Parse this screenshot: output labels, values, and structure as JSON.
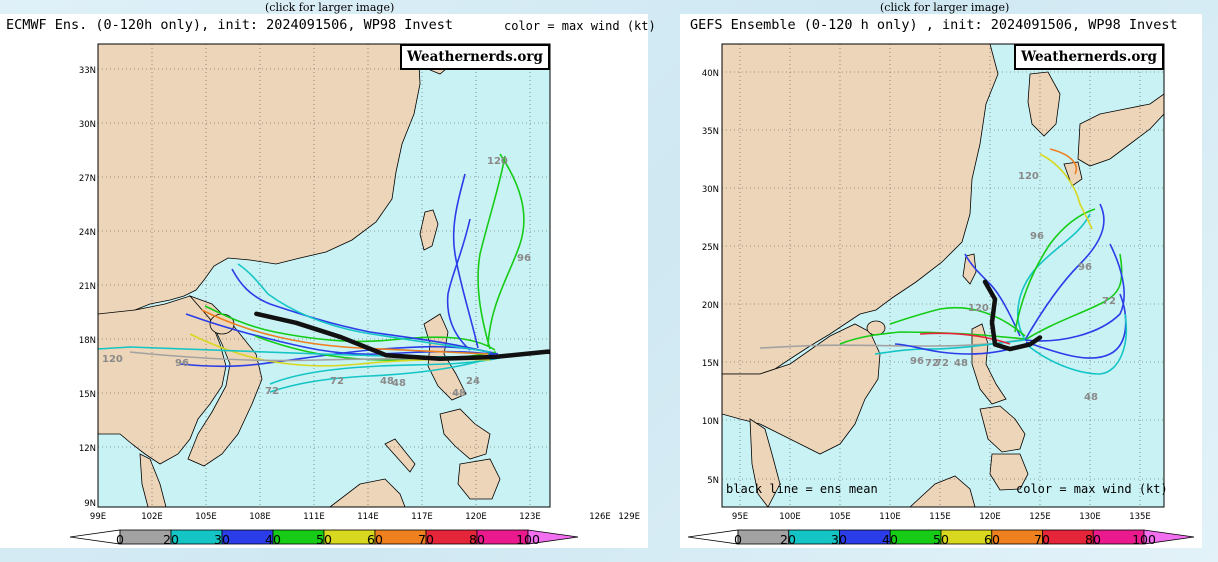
{
  "caption": "(click for larger image)",
  "brand": "Weathernerds.org",
  "colors": {
    "land": "#ecd5b8",
    "ocean": "#c9f2f5",
    "mean_track": "#111111"
  },
  "colorbar": {
    "labels": [
      "0",
      "20",
      "30",
      "40",
      "50",
      "60",
      "70",
      "80",
      "100"
    ],
    "colors": [
      "#a2a2a2",
      "#15c5c5",
      "#2a3de8",
      "#16cc16",
      "#d8d820",
      "#ee8020",
      "#e4253a",
      "#ea1a8e"
    ],
    "under_color": "#ffffff",
    "over_color": "#f270f0"
  },
  "panels": [
    {
      "id": "ecmwf",
      "title": "ECMWF Ens. (0-120h only), init: 2024091506, WP98 Invest",
      "color_note": "color = max wind (kt)",
      "lon_labels": [
        "99E",
        "102E",
        "105E",
        "108E",
        "111E",
        "114E",
        "117E",
        "120E",
        "123E",
        "126E",
        "129E"
      ],
      "lat_labels": [
        "9N",
        "12N",
        "15N",
        "18N",
        "21N",
        "24N",
        "27N",
        "30N",
        "33N"
      ],
      "hour_marks": [
        "120",
        "120",
        "96",
        "96",
        "72",
        "72",
        "48",
        "48",
        "48",
        "24"
      ],
      "mean_track_lonlat": [
        [
          107.8,
          19.4
        ],
        [
          110,
          18.9
        ],
        [
          112.5,
          18.1
        ],
        [
          115,
          17.1
        ],
        [
          118,
          16.9
        ],
        [
          121,
          17.0
        ],
        [
          124,
          17.3
        ],
        [
          126.2,
          16.9
        ]
      ]
    },
    {
      "id": "gefs",
      "title": "GEFS Ensemble (0-120 h only) , init: 2024091506, WP98 Invest",
      "color_note": "color = max wind (kt)",
      "mean_note": "black line = ens mean",
      "lon_labels": [
        "95E",
        "100E",
        "105E",
        "110E",
        "115E",
        "120E",
        "125E",
        "130E",
        "135E"
      ],
      "lat_labels": [
        "5N",
        "10N",
        "15N",
        "20N",
        "25N",
        "30N",
        "35N",
        "40N"
      ],
      "hour_marks": [
        "120",
        "120",
        "96",
        "96",
        "96",
        "72",
        "72",
        "72",
        "48",
        "48"
      ],
      "mean_track_lonlat": [
        [
          119.5,
          22.0
        ],
        [
          120.5,
          20.5
        ],
        [
          120.2,
          18.5
        ],
        [
          120.5,
          16.6
        ],
        [
          122,
          16.2
        ],
        [
          124,
          16.6
        ],
        [
          125,
          17.2
        ]
      ]
    }
  ]
}
